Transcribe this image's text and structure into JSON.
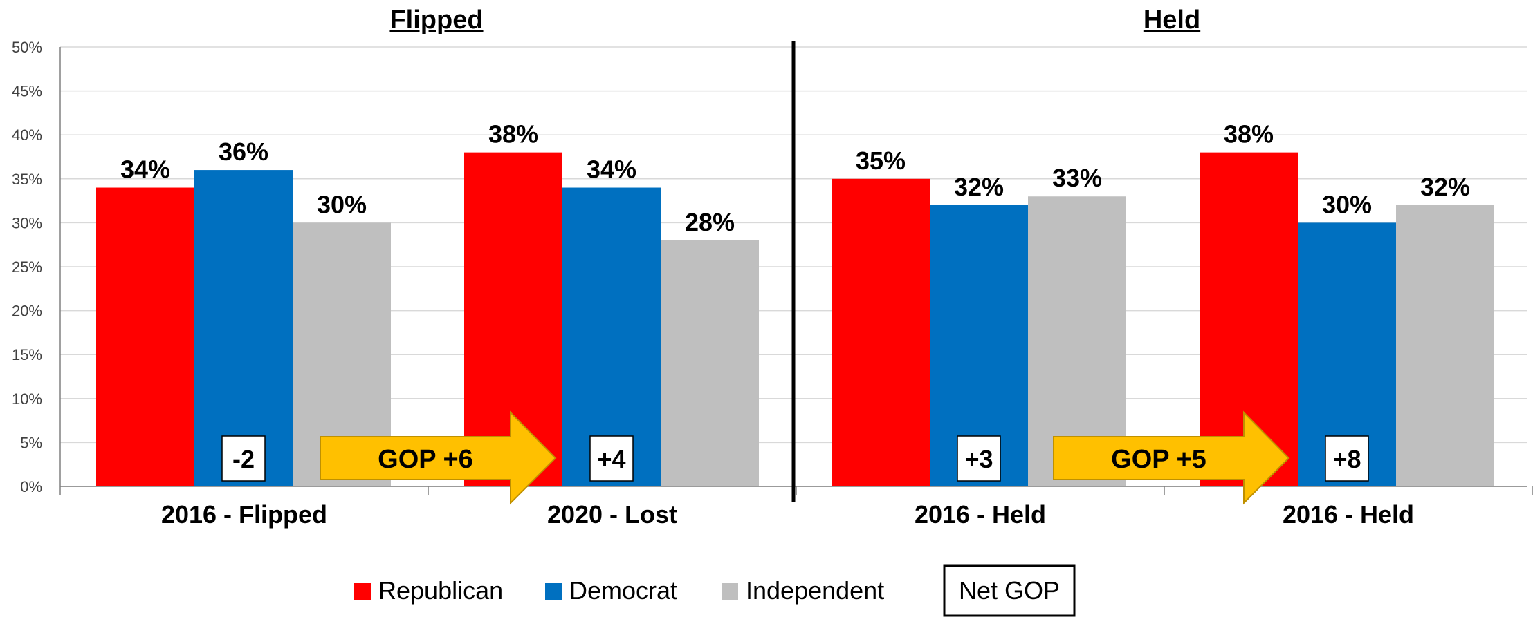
{
  "chart_data": {
    "type": "bar",
    "sections": [
      "Flipped",
      "Held"
    ],
    "categories": [
      "2016 - Flipped",
      "2020 - Lost",
      "2016 - Held",
      "2016 - Held"
    ],
    "series": [
      {
        "name": "Republican",
        "color": "#ff0000",
        "values": [
          34,
          38,
          35,
          38
        ]
      },
      {
        "name": "Democrat",
        "color": "#0070c0",
        "values": [
          36,
          34,
          32,
          30
        ]
      },
      {
        "name": "Independent",
        "color": "#bfbfbf",
        "values": [
          30,
          28,
          33,
          32
        ]
      }
    ],
    "value_labels": [
      [
        "34%",
        "38%",
        "35%",
        "38%"
      ],
      [
        "36%",
        "34%",
        "32%",
        "30%"
      ],
      [
        "30%",
        "28%",
        "33%",
        "32%"
      ]
    ],
    "net_gop": [
      "-2",
      "+4",
      "+3",
      "+8"
    ],
    "net_legend_label": "Net GOP",
    "arrows": [
      {
        "label": "GOP +6",
        "color": "#ffc000"
      },
      {
        "label": "GOP +5",
        "color": "#ffc000"
      }
    ],
    "ylim": [
      0,
      50
    ],
    "yticks": [
      "0%",
      "5%",
      "10%",
      "15%",
      "20%",
      "25%",
      "30%",
      "35%",
      "40%",
      "45%",
      "50%"
    ],
    "grid": true,
    "legend_position": "bottom"
  }
}
